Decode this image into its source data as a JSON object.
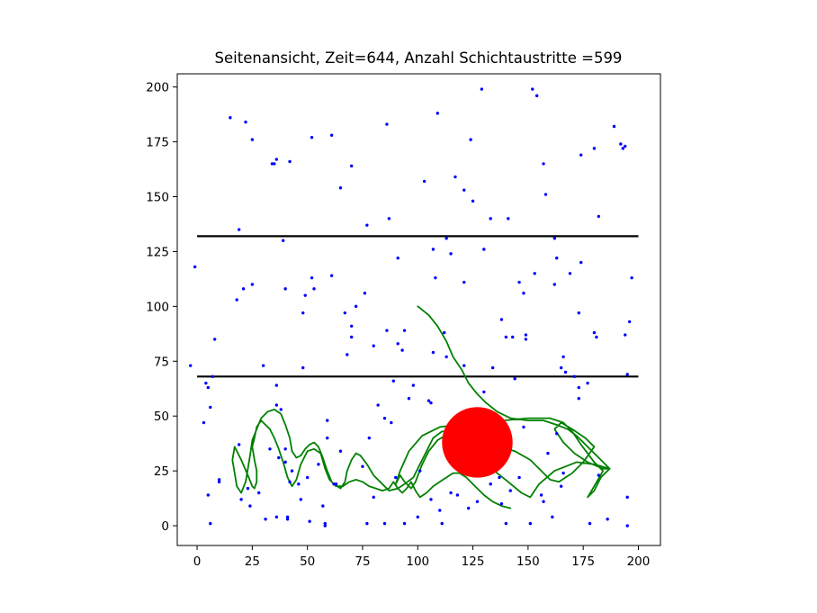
{
  "chart_data": {
    "type": "scatter",
    "title": "Seitenansicht, Zeit=644, Anzahl Schichtaustritte =599",
    "xlabel": "",
    "ylabel": "",
    "xlim": [
      -9,
      210
    ],
    "ylim": [
      -9,
      206
    ],
    "x_ticks": [
      0,
      25,
      50,
      75,
      100,
      125,
      150,
      175,
      200
    ],
    "y_ticks": [
      0,
      25,
      50,
      75,
      100,
      125,
      150,
      175,
      200
    ],
    "grid": false,
    "colors": {
      "points": "#0000ff",
      "path": "#008000",
      "lines": "#000000",
      "circle": "#ff0000"
    },
    "hlines": [
      {
        "y": 132,
        "x_range": [
          0,
          200
        ]
      },
      {
        "y": 68,
        "x_range": [
          0,
          200
        ]
      }
    ],
    "circle": {
      "x": 127,
      "y": 38,
      "r": 16
    },
    "path": [
      [
        100,
        100
      ],
      [
        105,
        96
      ],
      [
        109,
        91
      ],
      [
        113,
        84
      ],
      [
        116,
        77
      ],
      [
        120,
        71
      ],
      [
        123,
        65
      ],
      [
        127,
        60
      ],
      [
        131,
        56
      ],
      [
        136,
        52
      ],
      [
        142,
        49
      ],
      [
        150,
        48
      ],
      [
        157,
        48
      ],
      [
        163,
        46
      ],
      [
        168,
        44
      ],
      [
        172,
        41
      ],
      [
        177,
        36
      ],
      [
        183,
        30
      ],
      [
        187,
        26
      ],
      [
        183,
        22
      ],
      [
        180,
        16
      ],
      [
        177,
        13
      ],
      [
        180,
        18
      ],
      [
        184,
        25
      ],
      [
        180,
        29
      ],
      [
        174,
        37
      ],
      [
        170,
        43
      ],
      [
        166,
        47
      ],
      [
        160,
        49
      ],
      [
        150,
        49
      ],
      [
        139,
        48
      ],
      [
        128,
        47
      ],
      [
        118,
        46
      ],
      [
        110,
        45
      ],
      [
        102,
        41
      ],
      [
        96,
        34
      ],
      [
        92,
        25
      ],
      [
        90,
        19
      ],
      [
        92,
        23
      ],
      [
        94,
        20
      ],
      [
        97,
        17
      ],
      [
        99,
        20
      ],
      [
        102,
        28
      ],
      [
        105,
        34
      ],
      [
        109,
        39
      ],
      [
        114,
        42
      ],
      [
        121,
        41
      ],
      [
        129,
        39
      ],
      [
        137,
        36
      ],
      [
        144,
        34
      ],
      [
        151,
        30
      ],
      [
        156,
        25
      ],
      [
        160,
        21
      ],
      [
        164,
        20
      ],
      [
        170,
        24
      ],
      [
        175,
        29
      ],
      [
        180,
        36
      ],
      [
        176,
        40
      ],
      [
        170,
        44
      ],
      [
        165,
        47
      ],
      [
        162,
        44
      ],
      [
        166,
        38
      ],
      [
        171,
        33
      ],
      [
        177,
        29
      ],
      [
        184,
        26
      ],
      [
        187,
        26
      ],
      [
        180,
        28
      ],
      [
        172,
        29
      ],
      [
        162,
        25
      ],
      [
        155,
        19
      ],
      [
        151,
        13
      ],
      [
        147,
        15
      ],
      [
        141,
        20
      ],
      [
        136,
        24
      ],
      [
        131,
        29
      ],
      [
        126,
        35
      ],
      [
        121,
        40
      ],
      [
        116,
        43
      ],
      [
        111,
        43
      ],
      [
        107,
        40
      ],
      [
        104,
        34
      ],
      [
        101,
        28
      ],
      [
        98,
        22
      ],
      [
        94,
        19
      ],
      [
        91,
        17
      ],
      [
        87,
        16
      ],
      [
        84,
        19
      ],
      [
        80,
        23
      ],
      [
        77,
        28
      ],
      [
        74,
        32
      ],
      [
        72,
        33
      ],
      [
        70,
        30
      ],
      [
        68,
        25
      ],
      [
        67,
        20
      ],
      [
        65,
        17
      ],
      [
        62,
        19
      ],
      [
        60,
        21
      ],
      [
        58,
        26
      ],
      [
        56,
        33
      ],
      [
        53,
        35
      ],
      [
        50,
        34
      ],
      [
        47,
        28
      ],
      [
        45,
        21
      ],
      [
        43,
        18
      ],
      [
        41,
        22
      ],
      [
        39,
        29
      ],
      [
        37,
        35
      ],
      [
        35,
        40
      ],
      [
        33,
        44
      ],
      [
        31,
        46
      ],
      [
        29,
        48
      ],
      [
        27,
        45
      ],
      [
        26,
        40
      ],
      [
        25,
        36
      ],
      [
        26,
        30
      ],
      [
        27,
        25
      ],
      [
        27,
        20
      ],
      [
        26,
        17
      ],
      [
        25,
        18
      ],
      [
        23,
        23
      ],
      [
        20,
        30
      ],
      [
        17,
        36
      ],
      [
        16,
        30
      ],
      [
        17,
        24
      ],
      [
        18,
        18
      ],
      [
        20,
        15
      ],
      [
        22,
        20
      ],
      [
        23,
        26
      ],
      [
        24,
        32
      ],
      [
        25,
        39
      ],
      [
        27,
        44
      ],
      [
        29,
        49
      ],
      [
        32,
        52
      ],
      [
        35,
        53
      ],
      [
        38,
        51
      ],
      [
        40,
        46
      ],
      [
        42,
        40
      ],
      [
        43,
        34
      ],
      [
        45,
        31
      ],
      [
        47,
        32
      ],
      [
        49,
        35
      ],
      [
        51,
        37
      ],
      [
        53,
        38
      ],
      [
        55,
        36
      ],
      [
        57,
        31
      ],
      [
        59,
        25
      ],
      [
        61,
        20
      ],
      [
        63,
        18
      ],
      [
        66,
        18
      ],
      [
        69,
        20
      ],
      [
        72,
        21
      ],
      [
        75,
        20
      ],
      [
        78,
        18
      ],
      [
        81,
        17
      ],
      [
        84,
        16
      ],
      [
        87,
        17
      ],
      [
        89,
        20
      ],
      [
        91,
        17
      ],
      [
        93,
        15
      ],
      [
        95,
        17
      ],
      [
        97,
        20
      ],
      [
        99,
        16
      ],
      [
        101,
        13
      ],
      [
        104,
        15
      ],
      [
        107,
        18
      ],
      [
        110,
        20
      ],
      [
        113,
        22
      ],
      [
        116,
        24
      ],
      [
        119,
        24
      ],
      [
        122,
        22
      ],
      [
        126,
        18
      ],
      [
        130,
        14
      ],
      [
        134,
        11
      ],
      [
        138,
        9
      ],
      [
        142,
        8
      ]
    ],
    "points": [
      [
        -3,
        73
      ],
      [
        -1,
        118
      ],
      [
        3,
        47
      ],
      [
        4,
        65
      ],
      [
        5,
        14
      ],
      [
        6,
        1
      ],
      [
        5,
        63
      ],
      [
        7,
        68
      ],
      [
        8,
        85
      ],
      [
        6,
        54
      ],
      [
        10,
        21
      ],
      [
        10,
        20
      ],
      [
        15,
        186
      ],
      [
        18,
        103
      ],
      [
        19,
        135
      ],
      [
        19,
        37
      ],
      [
        20,
        12
      ],
      [
        21,
        108
      ],
      [
        22,
        184
      ],
      [
        23,
        17
      ],
      [
        24,
        9
      ],
      [
        25,
        110
      ],
      [
        25,
        176
      ],
      [
        28,
        15
      ],
      [
        30,
        73
      ],
      [
        31,
        3
      ],
      [
        33,
        35
      ],
      [
        34,
        165
      ],
      [
        35,
        165
      ],
      [
        36,
        64
      ],
      [
        36,
        55
      ],
      [
        36,
        4
      ],
      [
        36,
        167
      ],
      [
        37,
        31
      ],
      [
        39,
        130
      ],
      [
        38,
        53
      ],
      [
        40,
        35
      ],
      [
        40,
        29
      ],
      [
        40,
        108
      ],
      [
        41,
        4
      ],
      [
        41,
        3
      ],
      [
        42,
        166
      ],
      [
        43,
        25
      ],
      [
        42,
        20
      ],
      [
        46,
        19
      ],
      [
        47,
        12
      ],
      [
        48,
        97
      ],
      [
        48,
        72
      ],
      [
        49,
        105
      ],
      [
        50,
        22
      ],
      [
        51,
        2
      ],
      [
        52,
        113
      ],
      [
        52,
        177
      ],
      [
        53,
        108
      ],
      [
        55,
        28
      ],
      [
        57,
        9
      ],
      [
        58,
        1
      ],
      [
        58,
        0
      ],
      [
        59,
        48
      ],
      [
        59,
        40
      ],
      [
        61,
        114
      ],
      [
        61,
        178
      ],
      [
        62,
        19
      ],
      [
        63,
        19
      ],
      [
        65,
        154
      ],
      [
        65,
        34
      ],
      [
        67,
        97
      ],
      [
        68,
        78
      ],
      [
        70,
        91
      ],
      [
        70,
        86
      ],
      [
        70,
        164
      ],
      [
        72,
        100
      ],
      [
        75,
        27
      ],
      [
        76,
        106
      ],
      [
        77,
        137
      ],
      [
        77,
        1
      ],
      [
        78,
        40
      ],
      [
        80,
        13
      ],
      [
        80,
        82
      ],
      [
        82,
        55
      ],
      [
        85,
        1
      ],
      [
        85,
        49
      ],
      [
        86,
        89
      ],
      [
        86,
        183
      ],
      [
        87,
        140
      ],
      [
        88,
        47
      ],
      [
        89,
        66
      ],
      [
        90,
        22
      ],
      [
        91,
        122
      ],
      [
        91,
        83
      ],
      [
        93,
        80
      ],
      [
        94,
        1
      ],
      [
        94,
        89
      ],
      [
        96,
        58
      ],
      [
        98,
        64
      ],
      [
        100,
        4
      ],
      [
        101,
        25
      ],
      [
        103,
        157
      ],
      [
        105,
        57
      ],
      [
        106,
        56
      ],
      [
        106,
        12
      ],
      [
        107,
        79
      ],
      [
        107,
        126
      ],
      [
        108,
        113
      ],
      [
        109,
        188
      ],
      [
        110,
        7
      ],
      [
        111,
        1
      ],
      [
        112,
        88
      ],
      [
        113,
        131
      ],
      [
        113,
        77
      ],
      [
        115,
        15
      ],
      [
        115,
        124
      ],
      [
        117,
        159
      ],
      [
        118,
        14
      ],
      [
        121,
        73
      ],
      [
        121,
        111
      ],
      [
        121,
        153
      ],
      [
        123,
        8
      ],
      [
        124,
        176
      ],
      [
        125,
        148
      ],
      [
        127,
        11
      ],
      [
        129,
        199
      ],
      [
        130,
        126
      ],
      [
        130,
        61
      ],
      [
        133,
        19
      ],
      [
        133,
        140
      ],
      [
        134,
        72
      ],
      [
        137,
        22
      ],
      [
        138,
        10
      ],
      [
        138,
        94
      ],
      [
        140,
        1
      ],
      [
        140,
        86
      ],
      [
        141,
        140
      ],
      [
        142,
        16
      ],
      [
        143,
        86
      ],
      [
        144,
        67
      ],
      [
        146,
        111
      ],
      [
        146,
        22
      ],
      [
        148,
        106
      ],
      [
        148,
        45
      ],
      [
        149,
        85
      ],
      [
        149,
        87
      ],
      [
        151,
        1
      ],
      [
        152,
        199
      ],
      [
        153,
        115
      ],
      [
        154,
        196
      ],
      [
        156,
        14
      ],
      [
        157,
        11
      ],
      [
        157,
        165
      ],
      [
        158,
        151
      ],
      [
        159,
        33
      ],
      [
        161,
        4
      ],
      [
        162,
        131
      ],
      [
        162,
        110
      ],
      [
        163,
        42
      ],
      [
        163,
        122
      ],
      [
        165,
        72
      ],
      [
        165,
        18
      ],
      [
        166,
        24
      ],
      [
        166,
        77
      ],
      [
        167,
        70
      ],
      [
        169,
        115
      ],
      [
        171,
        68
      ],
      [
        173,
        97
      ],
      [
        173,
        58
      ],
      [
        173,
        63
      ],
      [
        174,
        120
      ],
      [
        174,
        169
      ],
      [
        177,
        65
      ],
      [
        178,
        1
      ],
      [
        180,
        88
      ],
      [
        180,
        172
      ],
      [
        182,
        141
      ],
      [
        181,
        86
      ],
      [
        182,
        23
      ],
      [
        186,
        3
      ],
      [
        189,
        182
      ],
      [
        192,
        174
      ],
      [
        193,
        172
      ],
      [
        194,
        173
      ],
      [
        194,
        87
      ],
      [
        195,
        69
      ],
      [
        195,
        13
      ],
      [
        195,
        0
      ],
      [
        196,
        93
      ],
      [
        197,
        113
      ]
    ]
  }
}
